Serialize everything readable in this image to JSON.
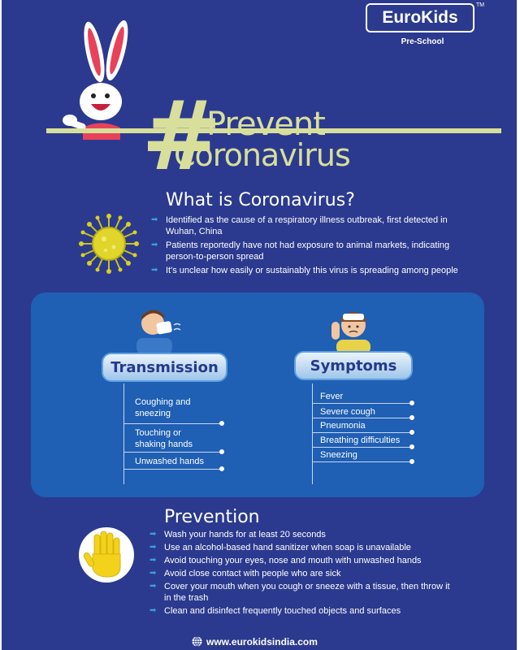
{
  "brand": {
    "name": "EuroKids",
    "tm": "TM",
    "subtitle": "Pre-School"
  },
  "title": {
    "hash": "#",
    "line1": "Prevent",
    "line2": "Coronavirus"
  },
  "what": {
    "heading": "What is Coronavirus?",
    "bullets": [
      "Identified as the cause of a respiratory illness outbreak, first detected in Wuhan, China",
      "Patients reportedly have not had exposure to animal markets, indicating person-to-person spread",
      "It's unclear how easily or sustainably this virus is spreading among people"
    ]
  },
  "transmission": {
    "heading": "Transmission",
    "items": [
      "Coughing and sneezing",
      "Touching or shaking hands",
      "Unwashed hands"
    ]
  },
  "symptoms": {
    "heading": "Symptoms",
    "items": [
      "Fever",
      "Severe cough",
      "Pneumonia",
      "Breathing difficulties",
      "Sneezing"
    ]
  },
  "prevention": {
    "heading": "Prevention",
    "bullets": [
      "Wash your hands for at least 20 seconds",
      "Use an alcohol-based hand sanitizer when soap is unavailable",
      "Avoid touching your eyes, nose and mouth with unwashed hands",
      "Avoid close contact with people who are sick",
      "Cover your mouth when you cough or sneeze with a tissue, then throw it in the trash",
      "Clean and disinfect frequently touched objects and surfaces"
    ]
  },
  "footer": {
    "url": "www.eurokidsindia.com"
  },
  "colors": {
    "background": "#2b3a8e",
    "accent": "#d8df9b",
    "panel": "#1f5fb4",
    "bullet": "#3aa0e0"
  }
}
